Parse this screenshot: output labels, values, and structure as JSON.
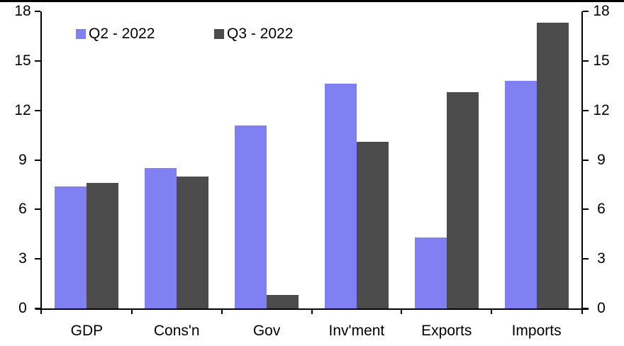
{
  "chart_data": {
    "type": "bar",
    "title": "",
    "xlabel": "",
    "ylabel": "",
    "categories": [
      "GDP",
      "Cons'n",
      "Gov",
      "Inv'ment",
      "Exports",
      "Imports"
    ],
    "series": [
      {
        "name": "Q2 - 2022",
        "color": "#8080F2",
        "values": [
          7.4,
          8.5,
          11.1,
          13.6,
          4.3,
          13.8
        ]
      },
      {
        "name": "Q3 - 2022",
        "color": "#4C4C4C",
        "values": [
          7.6,
          8.0,
          0.8,
          10.1,
          13.1,
          17.3
        ]
      }
    ],
    "ylim": [
      0,
      18
    ],
    "yticks": [
      0,
      3,
      6,
      9,
      12,
      15,
      18
    ],
    "y_axis_left_labels": [
      "0",
      "3",
      "6",
      "9",
      "12",
      "15",
      "18"
    ],
    "y_axis_right_labels": [
      "0",
      "3",
      "6",
      "9",
      "12",
      "15",
      "18"
    ],
    "grid": false,
    "legend_position": "top-inside",
    "axes": {
      "left": true,
      "right": true,
      "bottom": true
    }
  },
  "colors": {
    "background": "#FFFFFF",
    "axis": "#000000",
    "text": "#000000",
    "series_q2": "#8080F2",
    "series_q3": "#4C4C4C",
    "top_border": "#000000"
  }
}
